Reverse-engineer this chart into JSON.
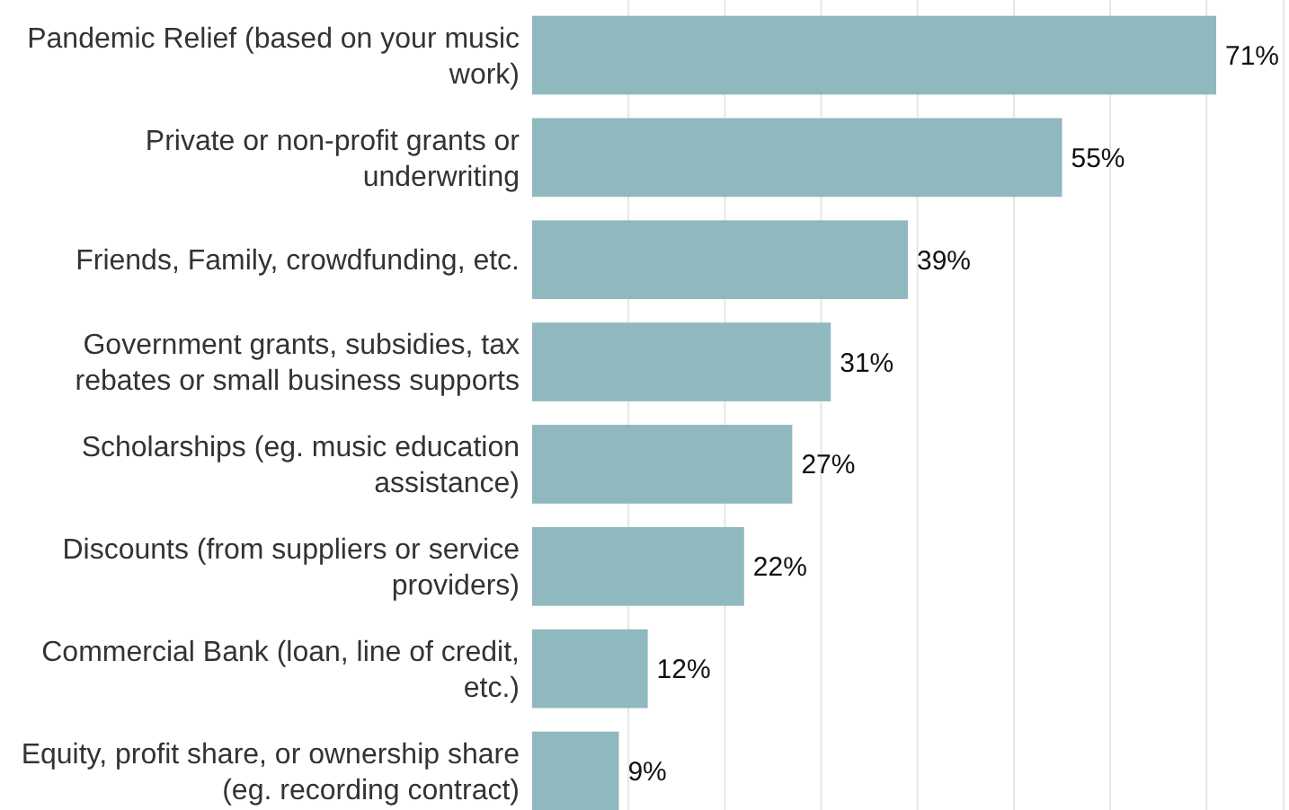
{
  "chart_data": {
    "type": "bar",
    "orientation": "horizontal",
    "categories": [
      "Pandemic Relief (based on your music work)",
      "Private or non-profit grants or underwriting",
      "Friends, Family, crowdfunding, etc.",
      "Government grants, subsidies, tax rebates or small business supports",
      "Scholarships (eg. music education assistance)",
      "Discounts (from suppliers or service providers)",
      "Commercial Bank (loan, line of credit, etc.)",
      "Equity, profit share, or ownership share (eg. recording contract)"
    ],
    "values": [
      71,
      55,
      39,
      31,
      27,
      22,
      12,
      9
    ],
    "value_labels": [
      "71%",
      "55%",
      "39%",
      "31%",
      "27%",
      "22%",
      "12%",
      "9%"
    ],
    "color": "#8fb8bf",
    "xlim": [
      0,
      78
    ],
    "xticks": [
      {
        "value": 10,
        "label": null
      },
      {
        "value": 20,
        "label": null
      },
      {
        "value": 30,
        "label": null
      },
      {
        "value": 40,
        "label": null
      },
      {
        "value": 50,
        "label": null
      },
      {
        "value": 60,
        "label": null
      },
      {
        "value": 70,
        "label": null
      }
    ],
    "tick_labels": "y",
    "grid": "x"
  }
}
